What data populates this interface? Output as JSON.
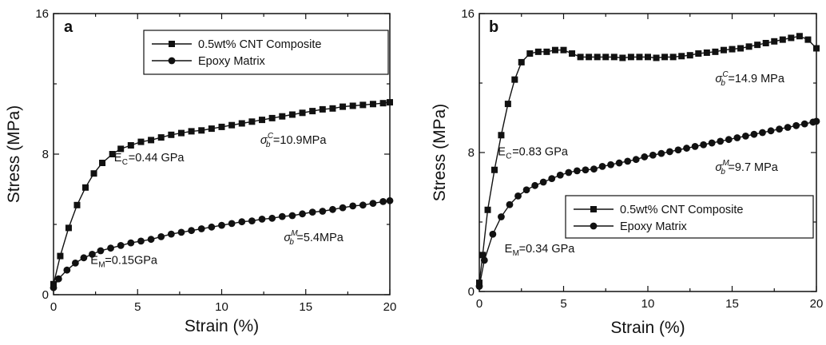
{
  "chart_data": [
    {
      "type": "line",
      "panel": "a",
      "xlabel": "Strain (%)",
      "ylabel": "Stress (MPa)",
      "xlim": [
        0,
        20
      ],
      "ylim": [
        0,
        16
      ],
      "xticks": [
        "0",
        "5",
        "10",
        "15",
        "20"
      ],
      "yticks": [
        "0",
        "8",
        "16"
      ],
      "legend_position": "top-right",
      "series": [
        {
          "name": "0.5wt% CNT Composite",
          "marker": "square",
          "points": [
            [
              0,
              0.6
            ],
            [
              0.4,
              2.2
            ],
            [
              0.9,
              3.8
            ],
            [
              1.4,
              5.1
            ],
            [
              1.9,
              6.1
            ],
            [
              2.4,
              6.9
            ],
            [
              2.9,
              7.5
            ],
            [
              3.5,
              8.0
            ],
            [
              4.0,
              8.3
            ],
            [
              4.6,
              8.5
            ],
            [
              5.2,
              8.7
            ],
            [
              5.8,
              8.8
            ],
            [
              6.4,
              8.95
            ],
            [
              7.0,
              9.1
            ],
            [
              7.6,
              9.2
            ],
            [
              8.2,
              9.3
            ],
            [
              8.8,
              9.35
            ],
            [
              9.4,
              9.45
            ],
            [
              10.0,
              9.55
            ],
            [
              10.6,
              9.65
            ],
            [
              11.2,
              9.75
            ],
            [
              11.8,
              9.85
            ],
            [
              12.4,
              9.95
            ],
            [
              13.0,
              10.05
            ],
            [
              13.6,
              10.15
            ],
            [
              14.2,
              10.25
            ],
            [
              14.8,
              10.35
            ],
            [
              15.4,
              10.45
            ],
            [
              16.0,
              10.55
            ],
            [
              16.6,
              10.6
            ],
            [
              17.2,
              10.7
            ],
            [
              17.8,
              10.75
            ],
            [
              18.4,
              10.8
            ],
            [
              19.0,
              10.85
            ],
            [
              19.6,
              10.9
            ],
            [
              20.0,
              10.95
            ]
          ]
        },
        {
          "name": "Epoxy Matrix",
          "marker": "circle",
          "points": [
            [
              0,
              0.4
            ],
            [
              0.3,
              0.9
            ],
            [
              0.8,
              1.4
            ],
            [
              1.3,
              1.8
            ],
            [
              1.8,
              2.1
            ],
            [
              2.3,
              2.3
            ],
            [
              2.8,
              2.5
            ],
            [
              3.4,
              2.65
            ],
            [
              4.0,
              2.8
            ],
            [
              4.6,
              2.95
            ],
            [
              5.2,
              3.05
            ],
            [
              5.8,
              3.15
            ],
            [
              6.4,
              3.3
            ],
            [
              7.0,
              3.45
            ],
            [
              7.6,
              3.55
            ],
            [
              8.2,
              3.65
            ],
            [
              8.8,
              3.75
            ],
            [
              9.4,
              3.85
            ],
            [
              10.0,
              3.95
            ],
            [
              10.6,
              4.05
            ],
            [
              11.2,
              4.15
            ],
            [
              11.8,
              4.2
            ],
            [
              12.4,
              4.3
            ],
            [
              13.0,
              4.35
            ],
            [
              13.6,
              4.45
            ],
            [
              14.2,
              4.5
            ],
            [
              14.8,
              4.6
            ],
            [
              15.4,
              4.7
            ],
            [
              16.0,
              4.75
            ],
            [
              16.6,
              4.85
            ],
            [
              17.2,
              4.95
            ],
            [
              17.8,
              5.05
            ],
            [
              18.4,
              5.1
            ],
            [
              19.0,
              5.2
            ],
            [
              19.6,
              5.3
            ],
            [
              20.0,
              5.35
            ]
          ]
        }
      ],
      "annotations": [
        {
          "main": "E",
          "sub": "C",
          "rest": "=0.44 GPa",
          "at": [
            3.6,
            7.6
          ]
        },
        {
          "main": "E",
          "sub": "M",
          "rest": "=0.15GPa",
          "at": [
            2.2,
            1.75
          ]
        },
        {
          "main": "σ",
          "sup": "C",
          "sub": "b",
          "rest": "=10.9MPa",
          "at": [
            12.3,
            8.6
          ]
        },
        {
          "main": "σ",
          "sup": "M",
          "sub": "b",
          "rest": "=5.4MPa",
          "at": [
            13.7,
            3.05
          ]
        }
      ]
    },
    {
      "type": "line",
      "panel": "b",
      "xlabel": "Strain (%)",
      "ylabel": "Stress (MPa)",
      "xlim": [
        0,
        20
      ],
      "ylim": [
        0,
        16
      ],
      "xticks": [
        "0",
        "5",
        "10",
        "15",
        "20"
      ],
      "yticks": [
        "0",
        "8",
        "16"
      ],
      "legend_position": "lower-right",
      "series": [
        {
          "name": "0.5wt% CNT Composite",
          "marker": "square",
          "points": [
            [
              0,
              0.5
            ],
            [
              0.2,
              2.1
            ],
            [
              0.5,
              4.7
            ],
            [
              0.9,
              7.0
            ],
            [
              1.3,
              9.0
            ],
            [
              1.7,
              10.8
            ],
            [
              2.1,
              12.2
            ],
            [
              2.5,
              13.2
            ],
            [
              3.0,
              13.7
            ],
            [
              3.5,
              13.8
            ],
            [
              4.0,
              13.8
            ],
            [
              4.5,
              13.9
            ],
            [
              5.0,
              13.9
            ],
            [
              5.5,
              13.7
            ],
            [
              6.0,
              13.5
            ],
            [
              6.5,
              13.5
            ],
            [
              7.0,
              13.5
            ],
            [
              7.5,
              13.5
            ],
            [
              8.0,
              13.5
            ],
            [
              8.5,
              13.45
            ],
            [
              9.0,
              13.5
            ],
            [
              9.5,
              13.5
            ],
            [
              10.0,
              13.5
            ],
            [
              10.5,
              13.45
            ],
            [
              11.0,
              13.5
            ],
            [
              11.5,
              13.5
            ],
            [
              12.0,
              13.55
            ],
            [
              12.5,
              13.6
            ],
            [
              13.0,
              13.7
            ],
            [
              13.5,
              13.75
            ],
            [
              14.0,
              13.8
            ],
            [
              14.5,
              13.9
            ],
            [
              15.0,
              13.95
            ],
            [
              15.5,
              14.0
            ],
            [
              16.0,
              14.1
            ],
            [
              16.5,
              14.2
            ],
            [
              17.0,
              14.3
            ],
            [
              17.5,
              14.4
            ],
            [
              18.0,
              14.5
            ],
            [
              18.5,
              14.6
            ],
            [
              19.0,
              14.7
            ],
            [
              19.5,
              14.5
            ],
            [
              20.0,
              14.0
            ]
          ]
        },
        {
          "name": "Epoxy Matrix",
          "marker": "circle",
          "points": [
            [
              0,
              0.3
            ],
            [
              0.3,
              1.8
            ],
            [
              0.8,
              3.3
            ],
            [
              1.3,
              4.3
            ],
            [
              1.8,
              5.0
            ],
            [
              2.3,
              5.5
            ],
            [
              2.8,
              5.85
            ],
            [
              3.3,
              6.1
            ],
            [
              3.8,
              6.3
            ],
            [
              4.3,
              6.5
            ],
            [
              4.8,
              6.7
            ],
            [
              5.3,
              6.85
            ],
            [
              5.8,
              6.95
            ],
            [
              6.3,
              7.0
            ],
            [
              6.8,
              7.05
            ],
            [
              7.3,
              7.2
            ],
            [
              7.8,
              7.3
            ],
            [
              8.3,
              7.4
            ],
            [
              8.8,
              7.5
            ],
            [
              9.3,
              7.6
            ],
            [
              9.8,
              7.75
            ],
            [
              10.3,
              7.85
            ],
            [
              10.8,
              7.95
            ],
            [
              11.3,
              8.05
            ],
            [
              11.8,
              8.15
            ],
            [
              12.3,
              8.25
            ],
            [
              12.8,
              8.35
            ],
            [
              13.3,
              8.45
            ],
            [
              13.8,
              8.55
            ],
            [
              14.3,
              8.65
            ],
            [
              14.8,
              8.75
            ],
            [
              15.3,
              8.85
            ],
            [
              15.8,
              8.95
            ],
            [
              16.3,
              9.05
            ],
            [
              16.8,
              9.15
            ],
            [
              17.3,
              9.25
            ],
            [
              17.8,
              9.35
            ],
            [
              18.3,
              9.45
            ],
            [
              18.8,
              9.55
            ],
            [
              19.3,
              9.65
            ],
            [
              19.8,
              9.75
            ],
            [
              20.0,
              9.8
            ]
          ]
        }
      ],
      "annotations": [
        {
          "main": "E",
          "sub": "C",
          "rest": "=0.83 GPa",
          "at": [
            1.1,
            7.85
          ]
        },
        {
          "main": "E",
          "sub": "M",
          "rest": "=0.34 GPa",
          "at": [
            1.5,
            2.25
          ]
        },
        {
          "main": "σ",
          "sup": "C",
          "sub": "b",
          "rest": "=14.9 MPa",
          "at": [
            14.0,
            12.05
          ]
        },
        {
          "main": "σ",
          "sup": "M",
          "sub": "b",
          "rest": "=9.7 MPa",
          "at": [
            14.0,
            6.95
          ]
        }
      ]
    }
  ]
}
